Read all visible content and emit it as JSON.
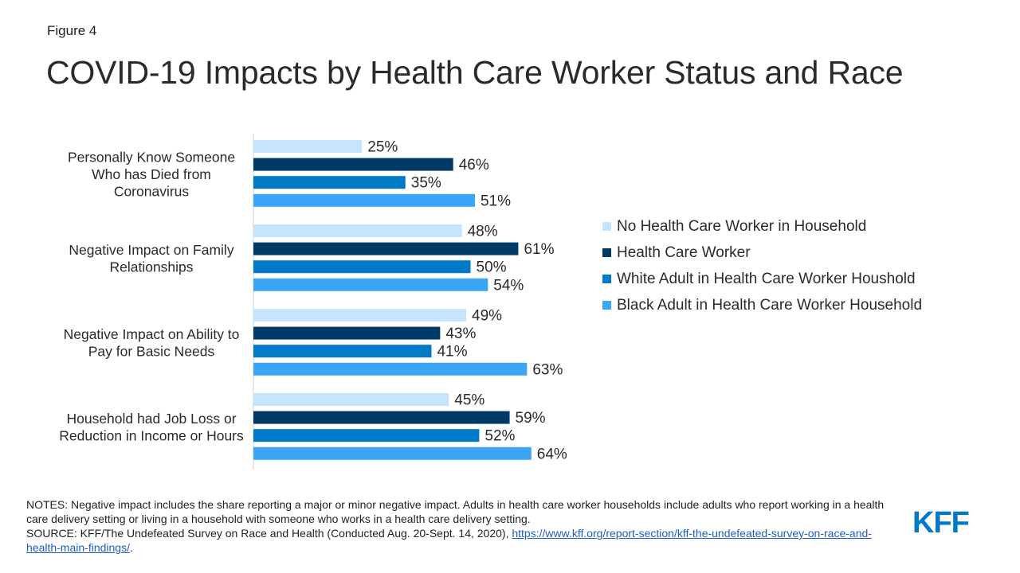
{
  "figure_label": "Figure 4",
  "title": "COVID-19 Impacts by Health Care Worker Status and Race",
  "chart_data": {
    "type": "bar",
    "orientation": "horizontal",
    "categories": [
      [
        "Personally Know Someone",
        "Who has Died from",
        "Coronavirus"
      ],
      [
        "Negative Impact on Family",
        "Relationships"
      ],
      [
        "Negative Impact on Ability to",
        "Pay for Basic Needs"
      ],
      [
        "Household had Job Loss or",
        "Reduction in Income or Hours"
      ]
    ],
    "series": [
      {
        "name": "No Health Care Worker in Household",
        "color": "#c6e4fb",
        "values": [
          25,
          48,
          49,
          45
        ]
      },
      {
        "name": "Health Care Worker",
        "color": "#003a67",
        "values": [
          46,
          61,
          43,
          59
        ]
      },
      {
        "name": "White Adult in Health Care Worker Houshold",
        "color": "#0079c7",
        "values": [
          35,
          50,
          41,
          52
        ]
      },
      {
        "name": "Black Adult in Health Care Worker Household",
        "color": "#3ba6f5",
        "values": [
          51,
          54,
          63,
          64
        ]
      }
    ],
    "value_suffix": "%",
    "legend_position": "right",
    "grid": false
  },
  "notes": {
    "notes_text": "NOTES: Negative impact includes the share reporting a major or minor negative impact. Adults in health care worker households include adults who report working in a health care delivery setting or living in a household with someone who works in a health care delivery setting.",
    "source_text": "SOURCE: KFF/The Undefeated Survey on Race and Health (Conducted Aug. 20-Sept. 14, 2020), ",
    "source_link": "https://www.kff.org/report-section/kff-the-undefeated-survey-on-race-and-health-main-findings/",
    "source_end": "."
  },
  "logo": "KFF"
}
